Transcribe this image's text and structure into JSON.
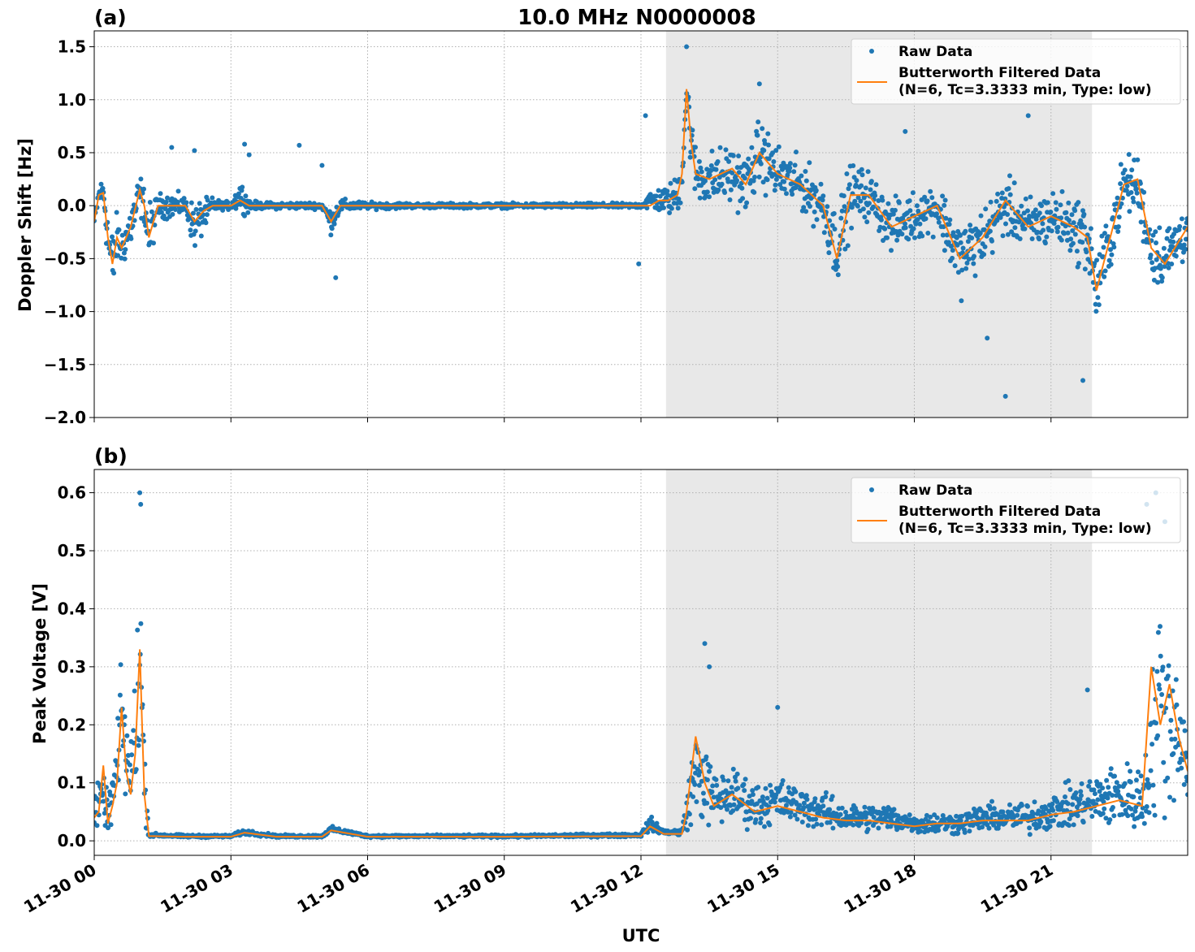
{
  "figure": {
    "title": "10.0 MHz N0000008",
    "xlabel": "UTC",
    "x_tick_labels": [
      "11-30 00",
      "11-30 03",
      "11-30 06",
      "11-30 09",
      "11-30 12",
      "11-30 15",
      "11-30 18",
      "11-30 21"
    ],
    "colors": {
      "raw": "#1f77b4",
      "filtered": "#ff7f0e",
      "shade": "#e8e8e8",
      "grid": "#b0b0b0"
    }
  },
  "legend": {
    "raw_label": "Raw Data",
    "filtered_label_line1": "Butterworth Filtered Data",
    "filtered_label_line2": "(N=6, Tc=3.3333 min, Type: low)"
  },
  "chart_data": [
    {
      "type": "scatter",
      "panel_label": "(a)",
      "ylabel": "Doppler Shift [Hz]",
      "xlim_hours": [
        0,
        24
      ],
      "ylim": [
        -2.0,
        1.65
      ],
      "yticks": [
        1.5,
        1.0,
        0.5,
        0.0,
        -0.5,
        -1.0,
        -1.5,
        -2.0
      ],
      "ytick_labels": [
        "1.5",
        "1.0",
        "0.5",
        "0.0",
        "−0.5",
        "−1.0",
        "−1.5",
        "−2.0"
      ],
      "shaded_region_hours": [
        12.55,
        21.9
      ],
      "legend_position": "top-right",
      "grid": true,
      "series": [
        {
          "name": "Raw Data",
          "style": "points",
          "x": [
            0.0,
            0.1,
            0.2,
            0.3,
            0.4,
            0.5,
            0.6,
            0.8,
            1.0,
            1.1,
            1.2,
            1.4,
            1.6,
            1.8,
            2.0,
            2.2,
            2.4,
            2.6,
            2.8,
            3.0,
            3.2,
            3.4,
            3.6,
            3.8,
            4.0,
            5.0,
            5.2,
            5.4,
            6.0,
            6.5,
            7.0,
            9.0,
            11.5,
            12.0,
            12.2,
            12.4,
            12.6,
            12.8,
            12.9,
            13.0,
            13.1,
            13.2,
            13.5,
            14.0,
            14.3,
            14.6,
            15.0,
            15.5,
            16.0,
            16.3,
            16.6,
            17.0,
            17.5,
            18.0,
            18.5,
            18.8,
            19.0,
            19.5,
            20.0,
            20.5,
            21.0,
            21.5,
            21.8,
            22.0,
            22.3,
            22.6,
            22.9,
            23.2,
            23.5,
            24.0
          ],
          "y_mid": [
            -0.15,
            0.1,
            0.15,
            -0.3,
            -0.6,
            -0.3,
            -0.4,
            -0.2,
            0.1,
            0.0,
            -0.3,
            0.0,
            0.0,
            0.0,
            0.0,
            -0.2,
            -0.1,
            0.0,
            0.0,
            0.0,
            0.1,
            0.0,
            0.0,
            0.0,
            0.0,
            0.0,
            -0.15,
            0.0,
            0.0,
            0.0,
            0.0,
            0.0,
            0.0,
            0.0,
            0.05,
            0.05,
            0.05,
            0.1,
            0.3,
            1.1,
            0.6,
            0.3,
            0.25,
            0.3,
            0.2,
            0.5,
            0.3,
            0.2,
            0.0,
            -0.4,
            0.1,
            0.1,
            -0.2,
            -0.1,
            0.0,
            -0.3,
            -0.5,
            -0.3,
            0.0,
            -0.2,
            -0.1,
            -0.2,
            -0.3,
            -0.8,
            -0.3,
            0.2,
            0.2,
            -0.4,
            -0.5,
            -0.2
          ],
          "y_spread": [
            0.1,
            0.15,
            0.15,
            0.4,
            0.5,
            0.3,
            0.25,
            0.3,
            0.3,
            0.2,
            0.4,
            0.15,
            0.15,
            0.15,
            0.1,
            0.3,
            0.2,
            0.1,
            0.05,
            0.05,
            0.2,
            0.08,
            0.04,
            0.04,
            0.04,
            0.04,
            0.15,
            0.08,
            0.04,
            0.04,
            0.03,
            0.03,
            0.03,
            0.03,
            0.12,
            0.15,
            0.18,
            0.25,
            0.3,
            0.35,
            0.35,
            0.35,
            0.35,
            0.35,
            0.35,
            0.4,
            0.35,
            0.3,
            0.35,
            0.45,
            0.4,
            0.3,
            0.3,
            0.3,
            0.3,
            0.4,
            0.45,
            0.35,
            0.35,
            0.35,
            0.35,
            0.35,
            0.45,
            0.5,
            0.4,
            0.35,
            0.35,
            0.4,
            0.4,
            0.35
          ],
          "outliers_x": [
            1.7,
            2.2,
            3.3,
            3.4,
            4.5,
            5.0,
            5.3,
            11.95,
            12.1,
            13.0,
            14.6,
            17.8,
            19.6,
            20.0,
            20.5,
            21.7
          ],
          "outliers_y": [
            0.55,
            0.52,
            0.58,
            0.48,
            0.57,
            0.38,
            -0.68,
            -0.55,
            0.85,
            1.5,
            1.15,
            0.7,
            -1.25,
            -1.8,
            0.85,
            -1.65
          ]
        },
        {
          "name": "Butterworth Filtered Data",
          "style": "line",
          "x": [
            0.0,
            0.1,
            0.2,
            0.3,
            0.4,
            0.5,
            0.6,
            0.8,
            1.0,
            1.1,
            1.2,
            1.4,
            1.6,
            1.8,
            2.0,
            2.2,
            2.4,
            2.6,
            2.8,
            3.0,
            3.2,
            3.4,
            3.6,
            3.8,
            4.0,
            5.0,
            5.2,
            5.4,
            6.0,
            6.5,
            7.0,
            9.0,
            11.5,
            12.0,
            12.2,
            12.4,
            12.6,
            12.8,
            12.9,
            13.0,
            13.1,
            13.2,
            13.5,
            14.0,
            14.3,
            14.6,
            15.0,
            15.5,
            16.0,
            16.3,
            16.6,
            17.0,
            17.5,
            18.0,
            18.5,
            18.8,
            19.0,
            19.5,
            20.0,
            20.5,
            21.0,
            21.5,
            21.8,
            22.0,
            22.3,
            22.6,
            22.9,
            23.2,
            23.5,
            24.0
          ],
          "y": [
            -0.15,
            0.1,
            0.12,
            -0.3,
            -0.55,
            -0.3,
            -0.4,
            -0.2,
            0.15,
            0.0,
            -0.3,
            0.0,
            0.0,
            0.0,
            0.0,
            -0.15,
            -0.05,
            0.0,
            0.0,
            0.0,
            0.05,
            0.0,
            0.0,
            0.0,
            0.0,
            0.0,
            -0.15,
            0.0,
            0.0,
            0.0,
            0.0,
            0.0,
            0.0,
            0.0,
            0.0,
            0.05,
            0.05,
            0.1,
            0.3,
            1.1,
            0.6,
            0.3,
            0.25,
            0.35,
            0.2,
            0.5,
            0.3,
            0.2,
            0.0,
            -0.5,
            0.1,
            0.1,
            -0.2,
            -0.1,
            0.0,
            -0.3,
            -0.5,
            -0.3,
            0.05,
            -0.2,
            -0.1,
            -0.2,
            -0.3,
            -0.8,
            -0.3,
            0.2,
            0.25,
            -0.4,
            -0.55,
            -0.2
          ]
        }
      ]
    },
    {
      "type": "scatter",
      "panel_label": "(b)",
      "ylabel": "Peak Voltage [V]",
      "xlim_hours": [
        0,
        24
      ],
      "ylim": [
        -0.025,
        0.64
      ],
      "yticks": [
        0.6,
        0.5,
        0.4,
        0.3,
        0.2,
        0.1,
        0.0
      ],
      "ytick_labels": [
        "0.6",
        "0.5",
        "0.4",
        "0.3",
        "0.2",
        "0.1",
        "0.0"
      ],
      "shaded_region_hours": [
        12.55,
        21.9
      ],
      "legend_position": "top-right",
      "grid": true,
      "series": [
        {
          "name": "Raw Data",
          "style": "points",
          "x": [
            0.0,
            0.1,
            0.2,
            0.3,
            0.4,
            0.5,
            0.6,
            0.7,
            0.8,
            0.9,
            1.0,
            1.05,
            1.1,
            1.2,
            1.3,
            2.0,
            3.0,
            3.3,
            4.0,
            5.0,
            5.2,
            6.0,
            9.0,
            12.0,
            12.2,
            12.5,
            12.7,
            12.9,
            13.0,
            13.2,
            13.4,
            13.6,
            14.0,
            14.5,
            15.0,
            15.5,
            16.0,
            16.5,
            17.0,
            17.5,
            18.0,
            18.5,
            19.0,
            19.5,
            20.0,
            20.5,
            21.0,
            21.5,
            22.0,
            22.5,
            23.0,
            23.2,
            23.4,
            23.6,
            23.8,
            24.0
          ],
          "y_mid": [
            0.05,
            0.06,
            0.08,
            0.04,
            0.08,
            0.12,
            0.22,
            0.15,
            0.1,
            0.2,
            0.3,
            0.25,
            0.1,
            0.01,
            0.01,
            0.008,
            0.008,
            0.015,
            0.008,
            0.008,
            0.02,
            0.008,
            0.008,
            0.01,
            0.03,
            0.015,
            0.015,
            0.015,
            0.05,
            0.12,
            0.1,
            0.07,
            0.08,
            0.06,
            0.07,
            0.06,
            0.05,
            0.04,
            0.04,
            0.04,
            0.03,
            0.03,
            0.03,
            0.04,
            0.04,
            0.04,
            0.05,
            0.06,
            0.07,
            0.08,
            0.07,
            0.15,
            0.25,
            0.2,
            0.2,
            0.12
          ],
          "y_spread": [
            0.04,
            0.05,
            0.05,
            0.04,
            0.06,
            0.1,
            0.12,
            0.12,
            0.1,
            0.15,
            0.25,
            0.3,
            0.08,
            0.004,
            0.004,
            0.003,
            0.003,
            0.006,
            0.003,
            0.003,
            0.006,
            0.003,
            0.003,
            0.004,
            0.015,
            0.006,
            0.006,
            0.008,
            0.04,
            0.1,
            0.09,
            0.06,
            0.06,
            0.05,
            0.05,
            0.04,
            0.04,
            0.03,
            0.03,
            0.03,
            0.02,
            0.025,
            0.025,
            0.03,
            0.03,
            0.035,
            0.04,
            0.05,
            0.06,
            0.07,
            0.08,
            0.15,
            0.25,
            0.2,
            0.15,
            0.08
          ],
          "outliers_x": [
            1.0,
            1.02,
            13.4,
            13.5,
            15.0,
            21.8,
            23.1,
            23.3,
            23.5
          ],
          "outliers_y": [
            0.6,
            0.58,
            0.34,
            0.3,
            0.23,
            0.26,
            0.58,
            0.6,
            0.55
          ]
        },
        {
          "name": "Butterworth Filtered Data",
          "style": "line",
          "x": [
            0.0,
            0.1,
            0.2,
            0.3,
            0.4,
            0.5,
            0.6,
            0.7,
            0.8,
            0.9,
            1.0,
            1.05,
            1.1,
            1.2,
            1.3,
            2.0,
            3.0,
            3.3,
            4.0,
            5.0,
            5.2,
            6.0,
            9.0,
            12.0,
            12.2,
            12.5,
            12.7,
            12.9,
            13.0,
            13.2,
            13.4,
            13.6,
            14.0,
            14.5,
            15.0,
            15.5,
            16.0,
            16.5,
            17.0,
            17.5,
            18.0,
            18.5,
            19.0,
            19.5,
            20.0,
            20.5,
            21.0,
            21.5,
            22.0,
            22.5,
            23.0,
            23.2,
            23.4,
            23.6,
            23.8,
            24.0
          ],
          "y": [
            0.04,
            0.05,
            0.13,
            0.03,
            0.06,
            0.1,
            0.23,
            0.12,
            0.08,
            0.15,
            0.33,
            0.2,
            0.08,
            0.008,
            0.008,
            0.007,
            0.007,
            0.014,
            0.007,
            0.007,
            0.018,
            0.007,
            0.007,
            0.008,
            0.025,
            0.012,
            0.012,
            0.012,
            0.05,
            0.18,
            0.1,
            0.06,
            0.08,
            0.05,
            0.06,
            0.05,
            0.04,
            0.035,
            0.035,
            0.03,
            0.025,
            0.03,
            0.03,
            0.035,
            0.035,
            0.035,
            0.045,
            0.05,
            0.06,
            0.07,
            0.06,
            0.3,
            0.2,
            0.27,
            0.18,
            0.12
          ]
        }
      ]
    }
  ]
}
